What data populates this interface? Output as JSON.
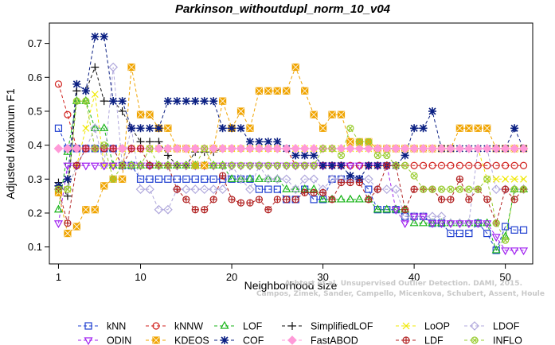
{
  "chart_data": {
    "type": "line",
    "title": "Parkinson_withoutdupl_norm_10_v04",
    "xlabel": "Neighborhood size",
    "ylabel": "Adjusted Maximum F1",
    "xlim": [
      0,
      53
    ],
    "ylim": [
      0.05,
      0.76
    ],
    "x_ticks": [
      1,
      10,
      20,
      30,
      40,
      50
    ],
    "y_ticks": [
      0.1,
      0.2,
      0.3,
      0.4,
      0.5,
      0.6,
      0.7
    ],
    "grid": false,
    "legend_position": "bottom",
    "watermark": [
      "Achtert et al. Unsupervised Outlier Detection. DAMI, 2015.",
      "Campos, Zimek, Sander, Campello, Micenkova, Schubert, Assent, Houle"
    ],
    "series": [
      {
        "name": "kNN",
        "color": "#1f3fd0",
        "marker": "square",
        "values": [
          0.45,
          0.39,
          0.39,
          0.39,
          0.39,
          0.39,
          0.39,
          0.34,
          0.34,
          0.3,
          0.3,
          0.3,
          0.3,
          0.3,
          0.3,
          0.3,
          0.3,
          0.3,
          0.3,
          0.3,
          0.3,
          0.3,
          0.27,
          0.27,
          0.27,
          0.24,
          0.24,
          0.27,
          0.24,
          0.24,
          0.3,
          0.3,
          0.3,
          0.3,
          0.27,
          0.21,
          0.21,
          0.21,
          0.19,
          0.19,
          0.19,
          0.17,
          0.17,
          0.14,
          0.14,
          0.14,
          0.17,
          0.14,
          0.09,
          0.16,
          0.15,
          0.15
        ]
      },
      {
        "name": "kNNW",
        "color": "#d0201c",
        "marker": "circle",
        "values": [
          0.58,
          0.49,
          0.39,
          0.39,
          0.39,
          0.39,
          0.39,
          0.39,
          0.39,
          0.39,
          0.39,
          0.39,
          0.39,
          0.39,
          0.39,
          0.39,
          0.39,
          0.39,
          0.39,
          0.39,
          0.39,
          0.39,
          0.39,
          0.39,
          0.39,
          0.39,
          0.34,
          0.34,
          0.34,
          0.34,
          0.34,
          0.34,
          0.34,
          0.34,
          0.34,
          0.34,
          0.34,
          0.34,
          0.34,
          0.34,
          0.34,
          0.34,
          0.34,
          0.34,
          0.34,
          0.34,
          0.34,
          0.34,
          0.34,
          0.34,
          0.34,
          0.34
        ]
      },
      {
        "name": "LOF",
        "color": "#17b417",
        "marker": "triangle-up",
        "values": [
          0.21,
          0.38,
          0.53,
          0.53,
          0.45,
          0.45,
          0.34,
          0.34,
          0.34,
          0.34,
          0.34,
          0.34,
          0.34,
          0.34,
          0.34,
          0.34,
          0.34,
          0.34,
          0.34,
          0.3,
          0.3,
          0.3,
          0.3,
          0.3,
          0.3,
          0.27,
          0.27,
          0.27,
          0.27,
          0.24,
          0.24,
          0.24,
          0.24,
          0.24,
          0.24,
          0.21,
          0.21,
          0.21,
          0.21,
          0.17,
          0.17,
          0.17,
          0.17,
          0.17,
          0.17,
          0.17,
          0.17,
          0.17,
          0.09,
          0.13,
          0.27,
          0.27
        ]
      },
      {
        "name": "SimplifiedLOF",
        "color": "#111111",
        "marker": "plus",
        "values": [
          0.29,
          0.25,
          0.56,
          0.56,
          0.63,
          0.53,
          0.53,
          0.5,
          0.45,
          0.41,
          0.41,
          0.41,
          0.37,
          0.34,
          0.34,
          0.38,
          0.38,
          0.38,
          0.39,
          0.39,
          0.39,
          0.39,
          0.39,
          0.39,
          0.39,
          0.39,
          0.39,
          0.39,
          0.39,
          0.39,
          0.39,
          0.39,
          0.39,
          0.39,
          0.39,
          0.39,
          0.39,
          0.39,
          0.39,
          0.39,
          0.39,
          0.39,
          0.39,
          0.39,
          0.39,
          0.39,
          0.39,
          0.39,
          0.39,
          0.39,
          0.39,
          0.39
        ]
      },
      {
        "name": "LoOP",
        "color": "#f0e800",
        "marker": "x",
        "values": [
          0.27,
          0.27,
          0.34,
          0.45,
          0.55,
          0.34,
          0.34,
          0.39,
          0.39,
          0.39,
          0.39,
          0.39,
          0.39,
          0.39,
          0.39,
          0.39,
          0.39,
          0.39,
          0.39,
          0.39,
          0.39,
          0.39,
          0.39,
          0.39,
          0.39,
          0.39,
          0.39,
          0.39,
          0.39,
          0.39,
          0.39,
          0.39,
          0.39,
          0.39,
          0.39,
          0.39,
          0.39,
          0.39,
          0.39,
          0.39,
          0.39,
          0.39,
          0.39,
          0.39,
          0.39,
          0.39,
          0.39,
          0.3,
          0.3,
          0.3,
          0.3,
          0.3
        ]
      },
      {
        "name": "LDOF",
        "color": "#b0a8dc",
        "marker": "diamond",
        "values": [
          0.27,
          0.27,
          0.34,
          0.39,
          0.45,
          0.34,
          0.63,
          0.34,
          0.45,
          0.27,
          0.27,
          0.21,
          0.21,
          0.27,
          0.27,
          0.27,
          0.27,
          0.27,
          0.27,
          0.34,
          0.3,
          0.27,
          0.34,
          0.3,
          0.3,
          0.3,
          0.27,
          0.3,
          0.3,
          0.27,
          0.3,
          0.3,
          0.3,
          0.3,
          0.3,
          0.27,
          0.27,
          0.27,
          0.19,
          0.19,
          0.19,
          0.19,
          0.19,
          0.17,
          0.17,
          0.17,
          0.39,
          0.39,
          0.27,
          0.27,
          0.27,
          0.27
        ]
      },
      {
        "name": "ODIN",
        "color": "#a020f0",
        "marker": "triangle-down",
        "values": [
          0.17,
          0.34,
          0.34,
          0.34,
          0.34,
          0.34,
          0.34,
          0.34,
          0.34,
          0.34,
          0.34,
          0.34,
          0.34,
          0.34,
          0.34,
          0.34,
          0.34,
          0.34,
          0.34,
          0.34,
          0.34,
          0.34,
          0.34,
          0.34,
          0.34,
          0.34,
          0.34,
          0.34,
          0.34,
          0.34,
          0.34,
          0.34,
          0.34,
          0.34,
          0.34,
          0.34,
          0.34,
          0.21,
          0.17,
          0.19,
          0.19,
          0.17,
          0.17,
          0.17,
          0.17,
          0.17,
          0.17,
          0.17,
          0.13,
          0.09,
          0.09,
          0.09
        ]
      },
      {
        "name": "KDEOS",
        "color": "#f0a400",
        "marker": "square-x",
        "values": [
          0.26,
          0.14,
          0.16,
          0.21,
          0.21,
          0.28,
          0.3,
          0.3,
          0.63,
          0.49,
          0.49,
          0.45,
          0.45,
          0.39,
          0.39,
          0.34,
          0.34,
          0.39,
          0.53,
          0.45,
          0.5,
          0.45,
          0.56,
          0.56,
          0.56,
          0.56,
          0.63,
          0.56,
          0.49,
          0.45,
          0.49,
          0.49,
          0.41,
          0.41,
          0.41,
          0.39,
          0.39,
          0.39,
          0.39,
          0.39,
          0.39,
          0.39,
          0.39,
          0.39,
          0.45,
          0.45,
          0.45,
          0.45,
          0.39,
          0.39,
          0.39,
          0.39
        ]
      },
      {
        "name": "COF",
        "color": "#0a1f82",
        "marker": "asterisk",
        "values": [
          0.28,
          0.3,
          0.58,
          0.56,
          0.72,
          0.72,
          0.53,
          0.53,
          0.45,
          0.45,
          0.45,
          0.45,
          0.53,
          0.53,
          0.53,
          0.53,
          0.53,
          0.53,
          0.45,
          0.45,
          0.45,
          0.41,
          0.41,
          0.41,
          0.41,
          0.39,
          0.37,
          0.37,
          0.37,
          0.34,
          0.34,
          0.34,
          0.31,
          0.3,
          0.34,
          0.34,
          0.34,
          0.34,
          0.37,
          0.45,
          0.45,
          0.5,
          0.39,
          0.39,
          0.39,
          0.39,
          0.39,
          0.39,
          0.39,
          0.39,
          0.45,
          0.39
        ]
      },
      {
        "name": "FastABOD",
        "color": "#ff9ad8",
        "marker": "diamond-filled",
        "values": [
          0.39,
          0.39,
          0.39,
          0.39,
          0.39,
          0.39,
          0.39,
          0.39,
          0.39,
          0.39,
          0.39,
          0.39,
          0.39,
          0.39,
          0.39,
          0.39,
          0.39,
          0.39,
          0.39,
          0.39,
          0.39,
          0.39,
          0.39,
          0.39,
          0.39,
          0.39,
          0.39,
          0.39,
          0.39,
          0.39,
          0.39,
          0.39,
          0.39,
          0.39,
          0.39,
          0.39,
          0.39,
          0.39,
          0.39,
          0.39,
          0.39,
          0.39,
          0.39,
          0.39,
          0.39,
          0.39,
          0.39,
          0.39,
          0.39,
          0.39,
          0.39,
          0.39
        ]
      },
      {
        "name": "LDF",
        "color": "#b22222",
        "marker": "circle-plus",
        "values": [
          0.27,
          0.17,
          0.34,
          0.39,
          0.39,
          0.39,
          0.39,
          0.34,
          0.39,
          0.39,
          0.34,
          0.34,
          0.34,
          0.27,
          0.24,
          0.21,
          0.21,
          0.24,
          0.31,
          0.24,
          0.23,
          0.23,
          0.24,
          0.21,
          0.24,
          0.24,
          0.24,
          0.26,
          0.26,
          0.26,
          0.24,
          0.29,
          0.29,
          0.29,
          0.24,
          0.27,
          0.34,
          0.34,
          0.21,
          0.27,
          0.27,
          0.27,
          0.24,
          0.24,
          0.3,
          0.24,
          0.27,
          0.24,
          0.17,
          0.27,
          0.24,
          0.27
        ]
      },
      {
        "name": "INFLO",
        "color": "#9acd32",
        "marker": "circle-x",
        "values": [
          0.27,
          0.27,
          0.53,
          0.53,
          0.39,
          0.4,
          0.3,
          0.34,
          0.34,
          0.34,
          0.39,
          0.34,
          0.34,
          0.34,
          0.34,
          0.34,
          0.39,
          0.34,
          0.34,
          0.34,
          0.34,
          0.34,
          0.34,
          0.34,
          0.34,
          0.34,
          0.34,
          0.34,
          0.34,
          0.39,
          0.39,
          0.37,
          0.45,
          0.41,
          0.41,
          0.37,
          0.37,
          0.34,
          0.34,
          0.31,
          0.27,
          0.27,
          0.27,
          0.27,
          0.27,
          0.27,
          0.27,
          0.3,
          0.17,
          0.12,
          0.27,
          0.27
        ]
      }
    ]
  }
}
